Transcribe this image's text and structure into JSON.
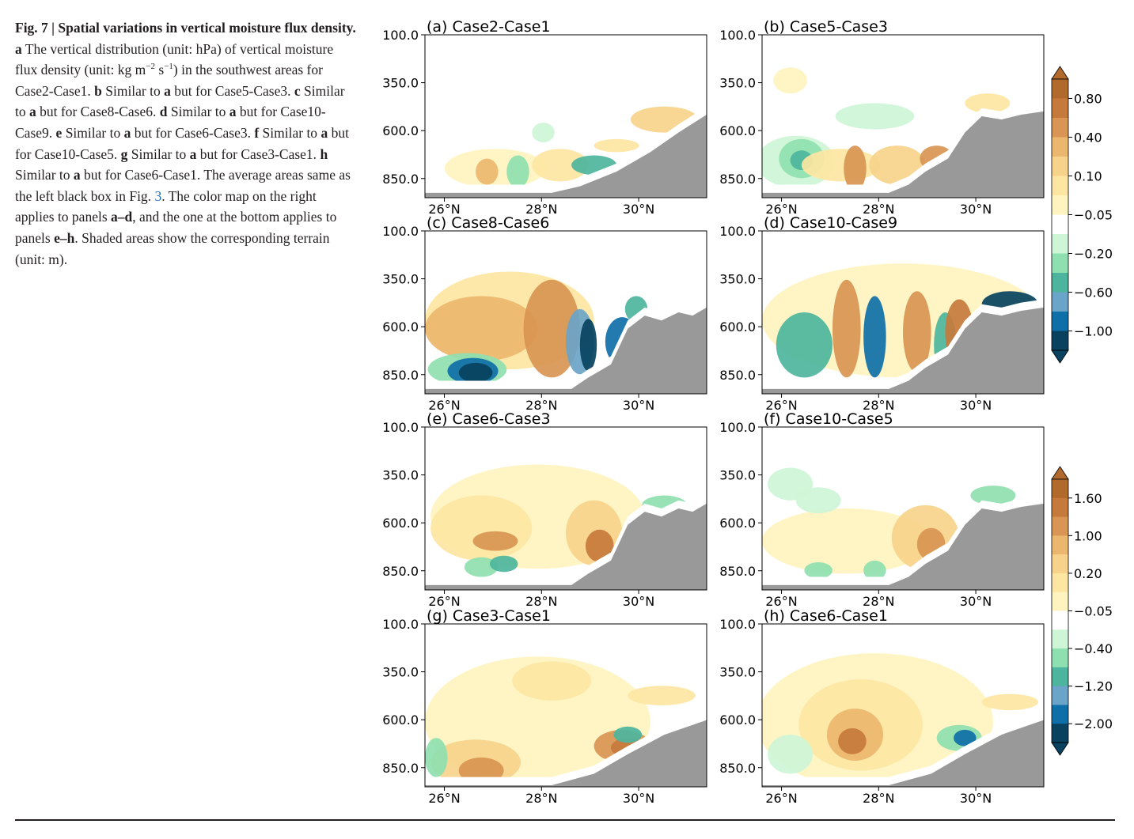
{
  "caption": {
    "fig_label": "Fig. 7 |",
    "title": "Spatial variations in vertical moisture flux density.",
    "a_label": "a",
    "a_text_1": "The vertical distribution (unit: hPa) of vertical moisture flux density (unit: kg m",
    "a_sup_1": "−2",
    "a_text_2": " s",
    "a_sup_2": "−1",
    "a_text_3": ") in the southwest areas for Case2-Case1.",
    "b_label": "b",
    "b_text_1": "Similar to",
    "b_ref": "a",
    "b_text_2": "but for Case5-Case3.",
    "c_label": "c",
    "c_text_1": "Similar to",
    "c_ref": "a",
    "c_text_2": "but for Case8-Case6.",
    "d_label": "d",
    "d_text_1": "Similar to",
    "d_ref": "a",
    "d_text_2": "but for Case10-Case9.",
    "e_label": "e",
    "e_text_1": "Similar to",
    "e_ref": "a",
    "e_text_2": "but for Case6-Case3.",
    "f_label": "f",
    "f_text_1": "Similar to",
    "f_ref": "a",
    "f_text_2": "but for Case10-Case5.",
    "g_label": "g",
    "g_text_1": "Similar to",
    "g_ref": "a",
    "g_text_2": "but for Case3-Case1.",
    "h_label": "h",
    "h_text_1": "Similar to",
    "h_ref": "a",
    "h_text_2": "but for Case6-Case1. The average areas same as the left black box in Fig.",
    "fig_ref": "3",
    "tail_1": ". The color map on the right applies to panels",
    "tail_ad": "a–d",
    "tail_2": ", and the one at the bottom applies to panels",
    "tail_eh": "e–h",
    "tail_3": ". Shaded areas show the corresponding terrain (unit: m)."
  },
  "chart_data": {
    "type": "contourf",
    "x_tick_labels": [
      "26°N",
      "28°N",
      "30°N"
    ],
    "x_ticks": [
      26,
      28,
      30
    ],
    "xlim": [
      25.6,
      31.4
    ],
    "y_tick_labels": [
      "100.0",
      "350.0",
      "600.0",
      "850.0"
    ],
    "y_ticks": [
      100,
      350,
      600,
      850
    ],
    "ylim": [
      950,
      100
    ],
    "panels": [
      {
        "label": "(a) Case2-Case1"
      },
      {
        "label": "(b) Case5-Case3"
      },
      {
        "label": "(c) Case8-Case6"
      },
      {
        "label": "(d) Case10-Case9"
      },
      {
        "label": "(e) Case6-Case3"
      },
      {
        "label": "(f) Case10-Case5"
      },
      {
        "label": "(g) Case3-Case1"
      },
      {
        "label": "(h) Case6-Case1"
      }
    ],
    "colorbars": [
      {
        "applies_to": "a–d",
        "tick_labels": [
          "0.80",
          "0.40",
          "0.10",
          "−0.05",
          "−0.20",
          "−0.60",
          "−1.00"
        ]
      },
      {
        "applies_to": "e–h",
        "tick_labels": [
          "1.60",
          "1.00",
          "0.20",
          "−0.05",
          "−0.40",
          "−1.20",
          "−2.00"
        ]
      }
    ],
    "colors": [
      "#08425e",
      "#0f6fa8",
      "#6aa4c8",
      "#4db59d",
      "#8fe0b0",
      "#cef5d6",
      "#ffffff",
      "#fff4bf",
      "#fde6a2",
      "#f7d28a",
      "#ebb66e",
      "#d99553",
      "#c57a3c",
      "#b1692c"
    ],
    "terrain_color": "#999999"
  }
}
